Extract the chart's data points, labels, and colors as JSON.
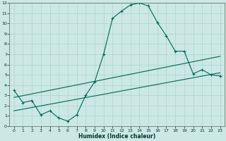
{
  "xlabel": "Humidex (Indice chaleur)",
  "bg_color": "#cce8e4",
  "grid_color": "#aad4cc",
  "line_color": "#006655",
  "spine_color": "#556655",
  "xlim": [
    -0.5,
    23.5
  ],
  "ylim": [
    0,
    12
  ],
  "xticks": [
    0,
    1,
    2,
    3,
    4,
    5,
    6,
    7,
    8,
    9,
    10,
    11,
    12,
    13,
    14,
    15,
    16,
    17,
    18,
    19,
    20,
    21,
    22,
    23
  ],
  "yticks": [
    0,
    1,
    2,
    3,
    4,
    5,
    6,
    7,
    8,
    9,
    10,
    11,
    12
  ],
  "main_x": [
    0,
    1,
    2,
    3,
    4,
    5,
    6,
    7,
    8,
    9,
    10,
    11,
    12,
    13,
    14,
    15,
    16,
    17,
    18,
    19,
    20,
    21,
    22,
    23
  ],
  "main_y": [
    3.5,
    2.3,
    2.5,
    1.1,
    1.5,
    0.8,
    0.5,
    1.1,
    3.0,
    4.3,
    7.0,
    10.5,
    11.2,
    11.8,
    12.0,
    11.7,
    10.1,
    8.8,
    7.3,
    7.3,
    5.1,
    5.5,
    5.0,
    4.9
  ],
  "line1_x": [
    0,
    23
  ],
  "line1_y": [
    2.8,
    6.8
  ],
  "line2_x": [
    0,
    23
  ],
  "line2_y": [
    1.5,
    5.2
  ]
}
